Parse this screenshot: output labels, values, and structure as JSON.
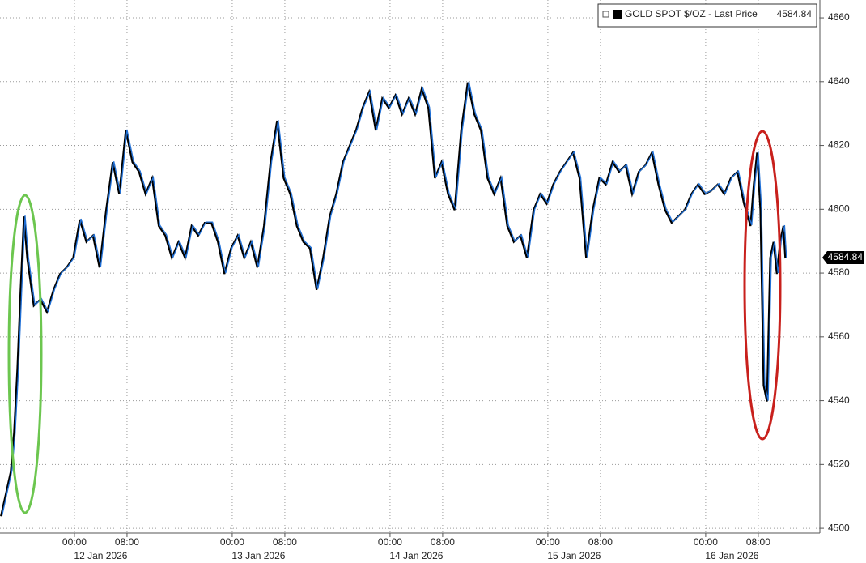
{
  "chart_data": {
    "type": "line",
    "series": [
      {
        "name": "GOLD SPOT $/OZ - Last Price",
        "color": "#1f6fd6",
        "last_value": 4584.84,
        "values": [
          4504,
          4518,
          4530,
          4550,
          4575,
          4598,
          4585,
          4570,
          4572,
          4568,
          4575,
          4580,
          4582,
          4585,
          4597,
          4590,
          4592,
          4582,
          4600,
          4615,
          4605,
          4625,
          4615,
          4612,
          4605,
          4610,
          4595,
          4592,
          4585,
          4590,
          4585,
          4595,
          4592,
          4596,
          4596,
          4590,
          4580,
          4588,
          4592,
          4585,
          4590,
          4582,
          4595,
          4615,
          4628,
          4610,
          4605,
          4595,
          4590,
          4588,
          4575,
          4585,
          4598,
          4605,
          4615,
          4620,
          4625,
          4632,
          4637,
          4625,
          4635,
          4632,
          4636,
          4630,
          4635,
          4630,
          4638,
          4632,
          4610,
          4615,
          4605,
          4600,
          4625,
          4640,
          4630,
          4625,
          4610,
          4605,
          4610,
          4595,
          4590,
          4592,
          4585,
          4600,
          4605,
          4602,
          4608,
          4612,
          4615,
          4618,
          4610,
          4585,
          4600,
          4610,
          4608,
          4615,
          4612,
          4614,
          4605,
          4612,
          4614,
          4618,
          4608,
          4600,
          4596,
          4598,
          4600,
          4605,
          4608,
          4605,
          4606,
          4608,
          4605,
          4610,
          4612,
          4602,
          4595,
          4608,
          4618,
          4600,
          4545,
          4540,
          4585,
          4590,
          4580,
          4590,
          4595,
          4584.84
        ]
      }
    ],
    "x": [
      "2026-01-11T13:00",
      "2026-01-11T14:30",
      "2026-01-11T15:00",
      "2026-01-11T15:30",
      "2026-01-11T16:00",
      "2026-01-11T16:30",
      "2026-01-11T17:00",
      "2026-01-11T18:00",
      "2026-01-11T19:00",
      "2026-01-11T20:00",
      "2026-01-11T21:00",
      "2026-01-11T22:00",
      "2026-01-11T23:00",
      "2026-01-12T00:00",
      "2026-01-12T01:00",
      "2026-01-12T02:00",
      "2026-01-12T03:00",
      "2026-01-12T04:00",
      "2026-01-12T05:00",
      "2026-01-12T06:00",
      "2026-01-12T07:00",
      "2026-01-12T08:00",
      "2026-01-12T09:00",
      "2026-01-12T10:00",
      "2026-01-12T11:00",
      "2026-01-12T12:00",
      "2026-01-12T13:00",
      "2026-01-12T14:00",
      "2026-01-12T15:00",
      "2026-01-12T16:00",
      "2026-01-12T17:00",
      "2026-01-12T18:00",
      "2026-01-12T19:00",
      "2026-01-12T20:00",
      "2026-01-12T21:00",
      "2026-01-12T22:00",
      "2026-01-12T23:00",
      "2026-01-13T00:00",
      "2026-01-13T01:00",
      "2026-01-13T02:00",
      "2026-01-13T03:00",
      "2026-01-13T04:00",
      "2026-01-13T05:00",
      "2026-01-13T06:00",
      "2026-01-13T07:00",
      "2026-01-13T08:00",
      "2026-01-13T09:00",
      "2026-01-13T10:00",
      "2026-01-13T11:00",
      "2026-01-13T12:00",
      "2026-01-13T13:00",
      "2026-01-13T14:00",
      "2026-01-13T15:00",
      "2026-01-13T16:00",
      "2026-01-13T17:00",
      "2026-01-13T18:00",
      "2026-01-13T19:00",
      "2026-01-13T20:00",
      "2026-01-13T21:00",
      "2026-01-13T22:00",
      "2026-01-13T23:00",
      "2026-01-14T00:00",
      "2026-01-14T01:00",
      "2026-01-14T02:00",
      "2026-01-14T03:00",
      "2026-01-14T04:00",
      "2026-01-14T05:00",
      "2026-01-14T06:00",
      "2026-01-14T07:00",
      "2026-01-14T08:00",
      "2026-01-14T09:00",
      "2026-01-14T10:00",
      "2026-01-14T11:00",
      "2026-01-14T12:00",
      "2026-01-14T13:00",
      "2026-01-14T14:00",
      "2026-01-14T15:00",
      "2026-01-14T16:00",
      "2026-01-14T17:00",
      "2026-01-14T18:00",
      "2026-01-14T19:00",
      "2026-01-14T20:00",
      "2026-01-14T21:00",
      "2026-01-14T22:00",
      "2026-01-14T23:00",
      "2026-01-15T00:00",
      "2026-01-15T01:00",
      "2026-01-15T02:00",
      "2026-01-15T03:00",
      "2026-01-15T04:00",
      "2026-01-15T05:00",
      "2026-01-15T06:00",
      "2026-01-15T07:00",
      "2026-01-15T08:00",
      "2026-01-15T09:00",
      "2026-01-15T10:00",
      "2026-01-15T11:00",
      "2026-01-15T12:00",
      "2026-01-15T13:00",
      "2026-01-15T14:00",
      "2026-01-15T15:00",
      "2026-01-15T16:00",
      "2026-01-15T17:00",
      "2026-01-15T18:00",
      "2026-01-15T19:00",
      "2026-01-15T20:00",
      "2026-01-15T21:00",
      "2026-01-15T22:00",
      "2026-01-15T23:00",
      "2026-01-16T00:00",
      "2026-01-16T01:00",
      "2026-01-16T02:00",
      "2026-01-16T03:00",
      "2026-01-16T04:00",
      "2026-01-16T05:00",
      "2026-01-16T06:00",
      "2026-01-16T07:00",
      "2026-01-16T07:30",
      "2026-01-16T08:00",
      "2026-01-16T08:30",
      "2026-01-16T09:00",
      "2026-01-16T09:30",
      "2026-01-16T10:00",
      "2026-01-16T10:30",
      "2026-01-16T11:00",
      "2026-01-16T11:30",
      "2026-01-16T12:00",
      "2026-01-16T12:18"
    ],
    "xlim": [
      "2026-01-11T12:41",
      "2026-01-16T17:22"
    ],
    "xticks": [
      {
        "value": "2026-01-12T00:00",
        "label": "00:00"
      },
      {
        "value": "2026-01-12T08:00",
        "label": "08:00"
      },
      {
        "value": "2026-01-13T00:00",
        "label": "00:00"
      },
      {
        "value": "2026-01-13T08:00",
        "label": "08:00"
      },
      {
        "value": "2026-01-14T00:00",
        "label": "00:00"
      },
      {
        "value": "2026-01-14T08:00",
        "label": "08:00"
      },
      {
        "value": "2026-01-15T00:00",
        "label": "00:00"
      },
      {
        "value": "2026-01-15T08:00",
        "label": "08:00"
      },
      {
        "value": "2026-01-16T00:00",
        "label": "00:00"
      },
      {
        "value": "2026-01-16T08:00",
        "label": "08:00"
      }
    ],
    "date_labels": [
      "12 Jan 2026",
      "13 Jan 2026",
      "14 Jan 2026",
      "15 Jan 2026",
      "16 Jan 2026"
    ],
    "ylim": [
      4498.5,
      4665.6
    ],
    "yticks": [
      4500,
      4520,
      4540,
      4560,
      4580,
      4600,
      4620,
      4640,
      4660
    ],
    "grid": true,
    "legend": "top-right"
  }
}
